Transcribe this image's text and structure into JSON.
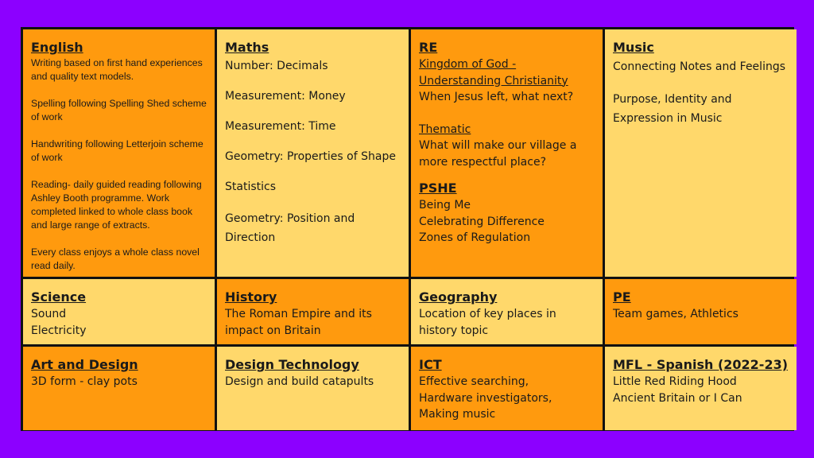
{
  "english": {
    "title": "English",
    "paras": [
      "Writing based on first hand experiences and quality text models.",
      "Spelling following  Spelling Shed scheme of work",
      "Handwriting following Letterjoin scheme of work",
      "Reading- daily guided reading following Ashley Booth programme. Work completed linked to whole class book and large range of extracts.",
      "Every class enjoys a whole class novel read daily."
    ]
  },
  "maths": {
    "title": "Maths",
    "items": [
      "Number: Decimals",
      "Measurement: Money",
      "Measurement: Time",
      "Geometry: Properties of Shape",
      "Statistics",
      "Geometry: Position and Direction"
    ]
  },
  "re": {
    "title": "RE",
    "topic_line1": "Kingdom of God -",
    "topic_line2": "Understanding Christianity",
    "question": "When Jesus left, what next?",
    "thematic_title": "Thematic",
    "thematic_question": "What will make our village a more respectful place?",
    "pshe_title": "PSHE",
    "pshe_items": [
      "Being Me",
      "Celebrating Difference",
      "Zones of Regulation"
    ]
  },
  "music": {
    "title": "Music",
    "line1": "Connecting Notes and Feelings",
    "line2": "Purpose, Identity and Expression in Music"
  },
  "science": {
    "title": "Science",
    "items": [
      "Sound",
      "Electricity"
    ]
  },
  "history": {
    "title": "History",
    "text": "The Roman Empire and its impact on Britain"
  },
  "geography": {
    "title": "Geography",
    "text": "Location of key places in history topic"
  },
  "pe": {
    "title": "PE",
    "text": "Team games, Athletics"
  },
  "art": {
    "title": "Art and Design",
    "text": "3D form - clay pots"
  },
  "dt": {
    "title": "Design Technology",
    "text": "Design and build catapults"
  },
  "ict": {
    "title": "ICT",
    "items": [
      "Effective searching,",
      "Hardware investigators,",
      "Making music"
    ]
  },
  "mfl": {
    "title": "MFL - Spanish (2022-23)",
    "items": [
      "Little Red Riding Hood",
      "Ancient Britain or I Can"
    ]
  }
}
